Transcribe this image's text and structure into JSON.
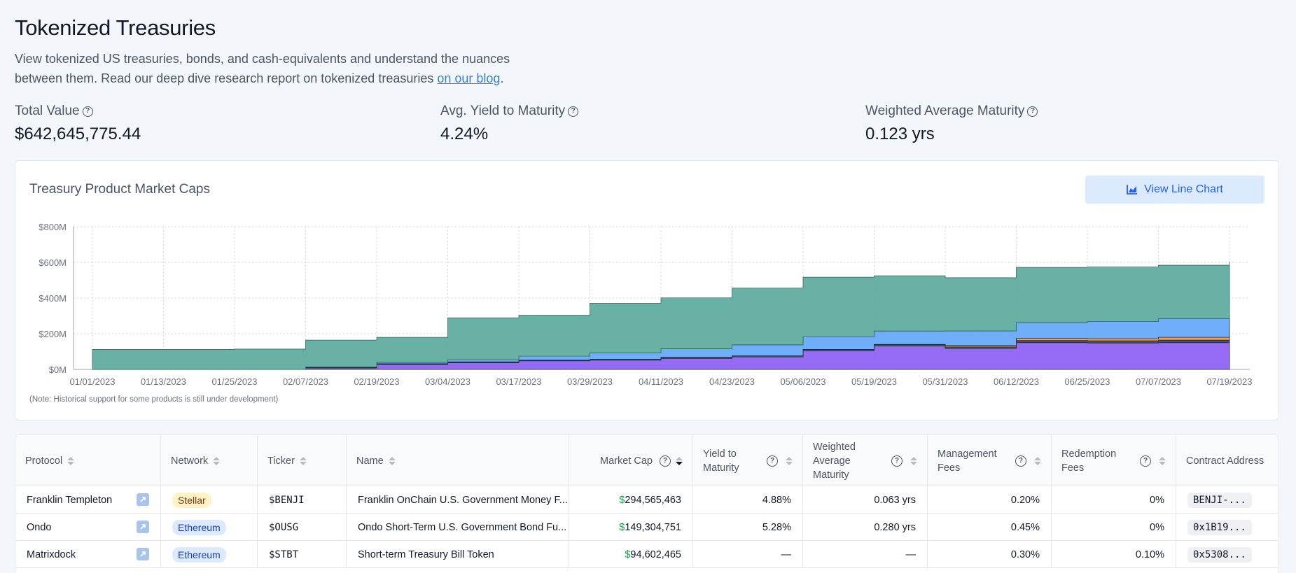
{
  "header": {
    "title": "Tokenized Treasuries",
    "intro_text": "View tokenized US treasuries, bonds, and cash-equivalents and understand the nuances between them. Read our deep dive research report on tokenized treasuries ",
    "intro_link": "on our blog",
    "intro_end": "."
  },
  "stats": [
    {
      "label": "Total Value",
      "value": "$642,645,775.44"
    },
    {
      "label": "Avg. Yield to Maturity",
      "value": "4.24%"
    },
    {
      "label": "Weighted Average Maturity",
      "value": "0.123 yrs"
    }
  ],
  "chart_card": {
    "title": "Treasury Product Market Caps",
    "button_label": "View Line Chart",
    "note": "(Note: Historical support for some products is still under development)"
  },
  "chart_data": {
    "type": "area",
    "stacked": true,
    "title": "Treasury Product Market Caps",
    "grid": true,
    "y_ticks": [
      "$0M",
      "$200M",
      "$400M",
      "$600M",
      "$800M"
    ],
    "ylim": [
      0,
      800
    ],
    "x_ticks": [
      "01/01/2023",
      "01/13/2023",
      "01/25/2023",
      "02/07/2023",
      "02/19/2023",
      "03/04/2023",
      "03/17/2023",
      "03/29/2023",
      "04/11/2023",
      "04/23/2023",
      "05/06/2023",
      "05/19/2023",
      "05/31/2023",
      "06/12/2023",
      "06/25/2023",
      "07/07/2023",
      "07/19/2023"
    ],
    "x": [
      "01/01/2023",
      "01/13/2023",
      "01/25/2023",
      "02/07/2023",
      "02/19/2023",
      "03/04/2023",
      "03/17/2023",
      "03/29/2023",
      "04/11/2023",
      "04/23/2023",
      "05/06/2023",
      "05/19/2023",
      "05/31/2023",
      "06/12/2023",
      "06/25/2023",
      "07/07/2023",
      "07/19/2023"
    ],
    "series": [
      {
        "color": "#8b5cf6",
        "values": [
          0,
          0,
          0,
          8,
          28,
          38,
          48,
          52,
          62,
          70,
          105,
          132,
          118,
          150,
          148,
          150,
          158
        ]
      },
      {
        "color": "#374151",
        "values": [
          0,
          0,
          0,
          2,
          4,
          4,
          4,
          5,
          6,
          6,
          7,
          8,
          8,
          12,
          12,
          14,
          14
        ]
      },
      {
        "color": "#fb923c",
        "values": [
          0,
          0,
          0,
          0,
          0,
          0,
          0,
          0,
          0,
          0,
          0,
          0,
          8,
          12,
          12,
          16,
          18
        ]
      },
      {
        "color": "#60a5fa",
        "values": [
          0,
          0,
          0,
          4,
          8,
          12,
          22,
          36,
          48,
          62,
          70,
          75,
          82,
          88,
          96,
          104,
          110
        ]
      },
      {
        "color": "#5aa89b",
        "values": [
          112,
          112,
          114,
          150,
          140,
          235,
          230,
          278,
          285,
          318,
          335,
          310,
          298,
          310,
          306,
          300,
          304
        ]
      }
    ]
  },
  "table": {
    "columns": [
      {
        "label": "Protocol"
      },
      {
        "label": "Network"
      },
      {
        "label": "Ticker"
      },
      {
        "label": "Name"
      },
      {
        "label": "Market Cap"
      },
      {
        "label": "Yield to Maturity"
      },
      {
        "label": "Weighted Average Maturity"
      },
      {
        "label": "Management Fees"
      },
      {
        "label": "Redemption Fees"
      },
      {
        "label": "Contract Address"
      }
    ],
    "rows": [
      {
        "protocol": "Franklin Templeton",
        "network": "Stellar",
        "ticker": "$BENJI",
        "name": "Franklin OnChain U.S. Government Money F...",
        "dollar": "$",
        "market_cap": "294,565,463",
        "ytm": "4.88%",
        "wam": "0.063 yrs",
        "mgmt": "0.20%",
        "redemption": "0%",
        "address": "BENJI-..."
      },
      {
        "protocol": "Ondo",
        "network": "Ethereum",
        "ticker": "$OUSG",
        "name": "Ondo Short-Term U.S. Government Bond Fu...",
        "dollar": "$",
        "market_cap": "149,304,751",
        "ytm": "5.28%",
        "wam": "0.280 yrs",
        "mgmt": "0.45%",
        "redemption": "0%",
        "address": "0x1B19..."
      },
      {
        "protocol": "Matrixdock",
        "network": "Ethereum",
        "ticker": "$STBT",
        "name": "Short-term Treasury Bill Token",
        "dollar": "$",
        "market_cap": "94,602,465",
        "ytm": "—",
        "wam": "—",
        "mgmt": "0.30%",
        "redemption": "0.10%",
        "address": "0x5308..."
      }
    ]
  }
}
